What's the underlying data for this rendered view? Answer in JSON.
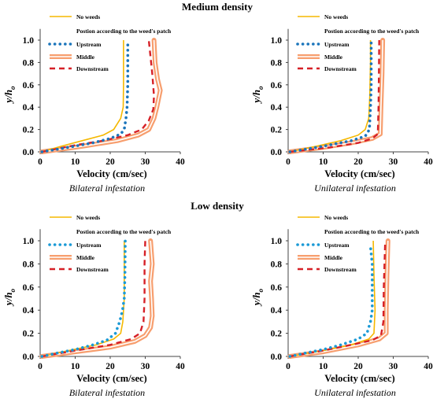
{
  "sections": [
    {
      "title": "Medium density"
    },
    {
      "title": "Low density"
    }
  ],
  "chart_data": [
    {
      "type": "line",
      "caption": "Bilateral infestation",
      "xlabel": "Velocity (cm/sec)",
      "ylabel": "y/h",
      "ylabel_sub": "o",
      "xlim": [
        0,
        40
      ],
      "ylim": [
        0,
        1.1
      ],
      "xticks": [
        "0",
        "10",
        "20",
        "30",
        "40"
      ],
      "yticks": [
        "0.0",
        "0.2",
        "0.4",
        "0.6",
        "0.8",
        "1.0"
      ],
      "legend_note": "Postion according to  the weed's patch",
      "series": [
        {
          "name": "No weeds",
          "style": "solid",
          "color": "#F5B800",
          "points": [
            [
              0.5,
              0
            ],
            [
              6,
              0.05
            ],
            [
              12,
              0.1
            ],
            [
              18,
              0.15
            ],
            [
              21,
              0.2
            ],
            [
              23,
              0.3
            ],
            [
              23.7,
              0.4
            ],
            [
              23.8,
              0.6
            ],
            [
              23.8,
              0.8
            ],
            [
              23.8,
              1.0
            ]
          ]
        },
        {
          "name": "Upstream",
          "style": "dotted",
          "color": "#1B75BB",
          "points": [
            [
              0.5,
              0
            ],
            [
              8,
              0.04
            ],
            [
              15,
              0.08
            ],
            [
              20,
              0.12
            ],
            [
              23,
              0.16
            ],
            [
              24,
              0.2
            ],
            [
              24.5,
              0.3
            ],
            [
              24.8,
              0.4
            ],
            [
              25,
              0.6
            ],
            [
              25,
              0.8
            ],
            [
              25,
              1.0
            ]
          ]
        },
        {
          "name": "Middle",
          "style": "band",
          "color": "#F79E6E",
          "points": [
            [
              0.5,
              0
            ],
            [
              12,
              0.05
            ],
            [
              22,
              0.1
            ],
            [
              28,
              0.15
            ],
            [
              31,
              0.2
            ],
            [
              32.5,
              0.3
            ],
            [
              33.3,
              0.4
            ],
            [
              34.3,
              0.55
            ],
            [
              33.5,
              0.65
            ],
            [
              32.8,
              0.8
            ],
            [
              32.5,
              1.0
            ]
          ]
        },
        {
          "name": "Downstream",
          "style": "dashed",
          "color": "#D62027",
          "points": [
            [
              0.5,
              0
            ],
            [
              10,
              0.06
            ],
            [
              18,
              0.1
            ],
            [
              25,
              0.15
            ],
            [
              29,
              0.2
            ],
            [
              31,
              0.28
            ],
            [
              32.3,
              0.38
            ],
            [
              32.5,
              0.5
            ],
            [
              32,
              0.7
            ],
            [
              31.5,
              0.85
            ],
            [
              31,
              1.0
            ]
          ]
        }
      ]
    },
    {
      "type": "line",
      "caption": "Unilateral infestation",
      "xlabel": "Velocity (cm/sec)",
      "ylabel": "y/h",
      "ylabel_sub": "o",
      "xlim": [
        0,
        40
      ],
      "ylim": [
        0,
        1.1
      ],
      "xticks": [
        "0",
        "10",
        "20",
        "30",
        "40"
      ],
      "yticks": [
        "0.0",
        "0.2",
        "0.4",
        "0.6",
        "0.8",
        "1.0"
      ],
      "legend_note": "Postion according to  the weed's patch",
      "series": [
        {
          "name": "No weeds",
          "style": "solid",
          "color": "#F5B800",
          "points": [
            [
              0.5,
              0
            ],
            [
              8,
              0.05
            ],
            [
              15,
              0.1
            ],
            [
              20,
              0.15
            ],
            [
              22,
              0.2
            ],
            [
              23,
              0.3
            ],
            [
              23.3,
              0.5
            ],
            [
              23.5,
              0.8
            ],
            [
              23.5,
              1.0
            ]
          ]
        },
        {
          "name": "Upstream",
          "style": "dotted",
          "color": "#1B75BB",
          "points": [
            [
              0.5,
              0
            ],
            [
              10,
              0.05
            ],
            [
              18,
              0.1
            ],
            [
              22,
              0.14
            ],
            [
              23.2,
              0.2
            ],
            [
              23.5,
              0.4
            ],
            [
              23.7,
              0.6
            ],
            [
              23.7,
              0.8
            ],
            [
              23.7,
              1.0
            ]
          ]
        },
        {
          "name": "Middle",
          "style": "band",
          "color": "#F79E6E",
          "points": [
            [
              0.5,
              0
            ],
            [
              10,
              0.04
            ],
            [
              18,
              0.08
            ],
            [
              24,
              0.12
            ],
            [
              26.3,
              0.16
            ],
            [
              26.5,
              0.4
            ],
            [
              26.8,
              0.7
            ],
            [
              27,
              1.0
            ]
          ]
        },
        {
          "name": "Downstream",
          "style": "dashed",
          "color": "#D62027",
          "points": [
            [
              0.5,
              0
            ],
            [
              12,
              0.04
            ],
            [
              20,
              0.08
            ],
            [
              24,
              0.12
            ],
            [
              25.6,
              0.16
            ],
            [
              25.8,
              0.4
            ],
            [
              25.9,
              0.7
            ],
            [
              26,
              1.0
            ]
          ]
        }
      ]
    },
    {
      "type": "line",
      "caption": "Bilateral infestation",
      "xlabel": "Velocity (cm/sec)",
      "ylabel": "y/h",
      "ylabel_sub": "o",
      "xlim": [
        0,
        40
      ],
      "ylim": [
        0,
        1.1
      ],
      "xticks": [
        "0",
        "10",
        "20",
        "30",
        "40"
      ],
      "yticks": [
        "0.0",
        "0.2",
        "0.4",
        "0.6",
        "0.8",
        "1.0"
      ],
      "legend_note": "Postion according to the weed's patch",
      "series": [
        {
          "name": "No weeds",
          "style": "solid",
          "color": "#F5B800",
          "points": [
            [
              0.5,
              0
            ],
            [
              8,
              0.05
            ],
            [
              16,
              0.1
            ],
            [
              21,
              0.15
            ],
            [
              23,
              0.2
            ],
            [
              23.6,
              0.3
            ],
            [
              24,
              0.5
            ],
            [
              24,
              0.8
            ],
            [
              24,
              1.0
            ]
          ]
        },
        {
          "name": "Upstream",
          "style": "dotted",
          "color": "#1B9AD6",
          "points": [
            [
              0.5,
              0
            ],
            [
              5,
              0.03
            ],
            [
              10,
              0.06
            ],
            [
              15,
              0.1
            ],
            [
              19,
              0.14
            ],
            [
              21.5,
              0.2
            ],
            [
              22.7,
              0.3
            ],
            [
              23.5,
              0.4
            ],
            [
              24,
              0.5
            ],
            [
              24.2,
              0.7
            ],
            [
              24.3,
              1.0
            ]
          ]
        },
        {
          "name": "Middle",
          "style": "band",
          "color": "#F79E6E",
          "points": [
            [
              0.5,
              0
            ],
            [
              10,
              0.04
            ],
            [
              20,
              0.08
            ],
            [
              27,
              0.13
            ],
            [
              30,
              0.18
            ],
            [
              31.5,
              0.25
            ],
            [
              32,
              0.35
            ],
            [
              31.8,
              0.5
            ],
            [
              31.5,
              0.65
            ],
            [
              32,
              0.8
            ],
            [
              31.5,
              1.0
            ]
          ]
        },
        {
          "name": "Downstream",
          "style": "dashed",
          "color": "#D62027",
          "points": [
            [
              0.5,
              0
            ],
            [
              10,
              0.05
            ],
            [
              20,
              0.1
            ],
            [
              26,
              0.15
            ],
            [
              28.5,
              0.2
            ],
            [
              29.5,
              0.3
            ],
            [
              29.8,
              0.5
            ],
            [
              29.8,
              0.8
            ],
            [
              30,
              1.0
            ]
          ]
        }
      ]
    },
    {
      "type": "line",
      "caption": "Unilateral infestation",
      "xlabel": "Velocity (cm/sec)",
      "ylabel": "y/h",
      "ylabel_sub": "o",
      "xlim": [
        0,
        40
      ],
      "ylim": [
        0,
        1.1
      ],
      "xticks": [
        "0",
        "10",
        "20",
        "30",
        "40"
      ],
      "yticks": [
        "0.0",
        "0.2",
        "0.4",
        "0.6",
        "0.8",
        "1.0"
      ],
      "legend_note": "Postion according to the weed's patch",
      "series": [
        {
          "name": "No weeds",
          "style": "solid",
          "color": "#F5B800",
          "points": [
            [
              0.5,
              0
            ],
            [
              10,
              0.05
            ],
            [
              18,
              0.1
            ],
            [
              23,
              0.15
            ],
            [
              24.5,
              0.2
            ],
            [
              24.8,
              0.4
            ],
            [
              24.5,
              0.7
            ],
            [
              24.3,
              1.0
            ]
          ]
        },
        {
          "name": "Upstream",
          "style": "dotted",
          "color": "#1B9AD6",
          "points": [
            [
              0.5,
              0
            ],
            [
              5,
              0.03
            ],
            [
              10,
              0.06
            ],
            [
              15,
              0.1
            ],
            [
              20,
              0.15
            ],
            [
              22.5,
              0.2
            ],
            [
              23.5,
              0.3
            ],
            [
              24,
              0.4
            ],
            [
              24,
              0.6
            ],
            [
              24,
              0.8
            ],
            [
              23.5,
              0.95
            ]
          ]
        },
        {
          "name": "Middle",
          "style": "band",
          "color": "#F79E6E",
          "points": [
            [
              0.5,
              0
            ],
            [
              10,
              0.04
            ],
            [
              20,
              0.1
            ],
            [
              26,
              0.15
            ],
            [
              28,
              0.2
            ],
            [
              28,
              0.4
            ],
            [
              28.2,
              0.7
            ],
            [
              28.5,
              1.0
            ]
          ]
        },
        {
          "name": "Downstream",
          "style": "dashed",
          "color": "#D62027",
          "points": [
            [
              0.5,
              0
            ],
            [
              10,
              0.05
            ],
            [
              18,
              0.1
            ],
            [
              24,
              0.14
            ],
            [
              26.5,
              0.18
            ],
            [
              27.2,
              0.3
            ],
            [
              27.3,
              0.6
            ],
            [
              27.5,
              0.8
            ],
            [
              27.7,
              1.0
            ]
          ]
        }
      ]
    }
  ]
}
